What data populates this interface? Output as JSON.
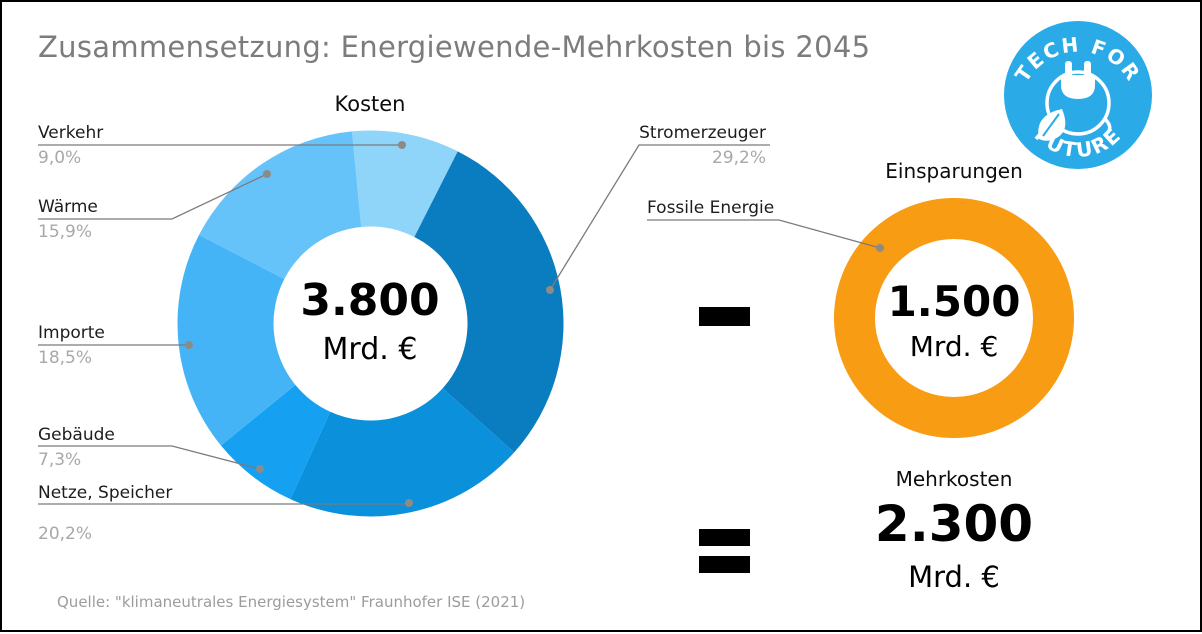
{
  "header": {
    "title": "Zusammensetzung: Energiewende-Mehrkosten bis 2045"
  },
  "logo": {
    "top_text": "TECH FOR",
    "bottom_text": "FUTURE",
    "color": "#2aabe8"
  },
  "chart_data": [
    {
      "type": "pie",
      "donut": true,
      "title": "Kosten",
      "center_value": "3.800",
      "center_unit": "Mrd. €",
      "start_angle_deg": -5.5,
      "legend_position": "left-callouts",
      "segments": [
        {
          "label": "Verkehr",
          "value": 9.0,
          "pct_label": "9,0%",
          "color": "#8fd4f9"
        },
        {
          "label": "Stromerzeuger",
          "value": 29.2,
          "pct_label": "29,2%",
          "color": "#0a7cc0"
        },
        {
          "label": "Netze, Speicher",
          "value": 20.2,
          "pct_label": "20,2%",
          "color": "#0b90dc"
        },
        {
          "label": "Gebäude",
          "value": 7.3,
          "pct_label": "7,3%",
          "color": "#16a0f2"
        },
        {
          "label": "Importe",
          "value": 18.5,
          "pct_label": "18,5%",
          "color": "#45b4f6"
        },
        {
          "label": "Wärme",
          "value": 15.9,
          "pct_label": "15,9%",
          "color": "#66c3fa"
        }
      ]
    },
    {
      "type": "pie",
      "donut": true,
      "title": "Einsparungen",
      "center_value": "1.500",
      "center_unit": "Mrd. €",
      "segments": [
        {
          "label": "Fossile Energie",
          "value": 100,
          "pct_label": "",
          "color": "#f89c14"
        }
      ]
    }
  ],
  "operators": {
    "subtract": "-",
    "equals": "="
  },
  "result": {
    "label": "Mehrkosten",
    "value": "2.300",
    "unit": "Mrd. €"
  },
  "footer": {
    "source": "Quelle: \"klimaneutrales Energiesystem\" Fraunhofer ISE (2021)"
  }
}
